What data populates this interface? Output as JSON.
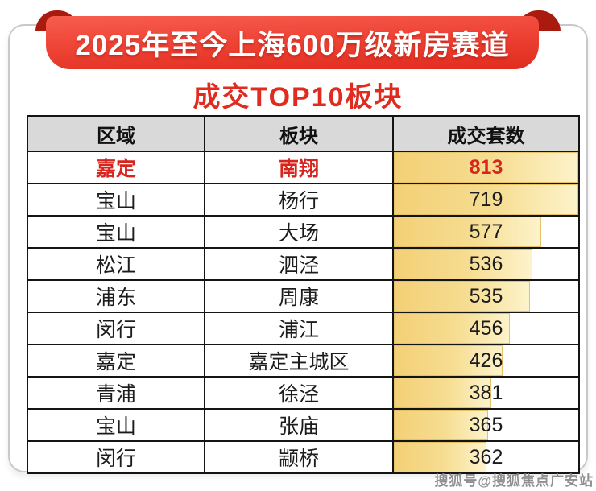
{
  "banner": {
    "title": "2025年至今上海600万级新房赛道"
  },
  "subtitle": "成交TOP10板块",
  "table": {
    "headers": [
      "区域",
      "板块",
      "成交套数"
    ],
    "rows": [
      {
        "district": "嘉定",
        "sector": "南翔",
        "count": "813",
        "bar_pct": 100,
        "highlight": true
      },
      {
        "district": "宝山",
        "sector": "杨行",
        "count": "719",
        "bar_pct": 100,
        "highlight": false
      },
      {
        "district": "宝山",
        "sector": "大场",
        "count": "577",
        "bar_pct": 80,
        "highlight": false
      },
      {
        "district": "松江",
        "sector": "泗泾",
        "count": "536",
        "bar_pct": 75,
        "highlight": false
      },
      {
        "district": "浦东",
        "sector": "周康",
        "count": "535",
        "bar_pct": 74,
        "highlight": false
      },
      {
        "district": "闵行",
        "sector": "浦江",
        "count": "456",
        "bar_pct": 63,
        "highlight": false
      },
      {
        "district": "嘉定",
        "sector": "嘉定主城区",
        "count": "426",
        "bar_pct": 59,
        "highlight": false
      },
      {
        "district": "青浦",
        "sector": "徐泾",
        "count": "381",
        "bar_pct": 53,
        "highlight": false
      },
      {
        "district": "宝山",
        "sector": "张庙",
        "count": "365",
        "bar_pct": 51,
        "highlight": false
      },
      {
        "district": "闵行",
        "sector": "颛桥",
        "count": "362",
        "bar_pct": 50,
        "highlight": false
      }
    ]
  },
  "watermark": "搜狐号@搜狐焦点广安站",
  "colors": {
    "banner_red": "#ee4436",
    "banner_curl_dark_red": "#a81b0e",
    "subtitle_red": "#e02b1e",
    "highlight_red": "#d7251d",
    "header_gray": "#d9d9d9",
    "bar_gold": "#f3d076",
    "bar_gold_light": "#fdf3cb",
    "table_border_black": "#141414",
    "panel_border_gray": "#c9c9c9",
    "watermark_gray": "#8f8f8f"
  },
  "chart_data": {
    "type": "table",
    "title": "2025年至今上海600万级新房赛道 成交TOP10板块",
    "columns": [
      "区域",
      "板块",
      "成交套数"
    ],
    "rows": [
      [
        "嘉定",
        "南翔",
        813
      ],
      [
        "宝山",
        "杨行",
        719
      ],
      [
        "宝山",
        "大场",
        577
      ],
      [
        "松江",
        "泗泾",
        536
      ],
      [
        "浦东",
        "周康",
        535
      ],
      [
        "闵行",
        "浦江",
        456
      ],
      [
        "嘉定",
        "嘉定主城区",
        426
      ],
      [
        "青浦",
        "徐泾",
        381
      ],
      [
        "宝山",
        "张庙",
        365
      ],
      [
        "闵行",
        "颛桥",
        362
      ]
    ],
    "bar_column": "成交套数",
    "bar_scale_note": "in-cell data bars, width roughly proportional to value, full at >=719",
    "highlight_row": 0
  }
}
